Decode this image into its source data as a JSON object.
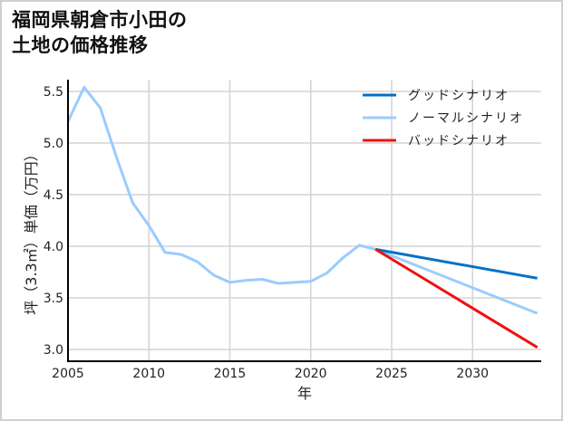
{
  "title": {
    "line1": "福岡県朝倉市小田の",
    "line2": "土地の価格推移"
  },
  "chart_data": {
    "type": "line",
    "title": "福岡県朝倉市小田の土地の価格推移",
    "xlabel": "年",
    "ylabel": "坪（3.3㎡）単価（万円）",
    "xlim": [
      2005,
      2034
    ],
    "ylim": [
      2.88,
      5.7
    ],
    "x_ticks": [
      "2005",
      "2010",
      "2015",
      "2020",
      "2025",
      "2030"
    ],
    "y_ticks": [
      "3.0",
      "3.5",
      "4.0",
      "4.5",
      "5.0",
      "5.5"
    ],
    "grid": true,
    "legend_position": "upper right",
    "series": [
      {
        "name": "ノーマルシナリオ",
        "color": "#99ccff",
        "x": [
          2005,
          2006,
          2007,
          2008,
          2009,
          2010,
          2011,
          2012,
          2013,
          2014,
          2015,
          2016,
          2017,
          2018,
          2019,
          2020,
          2021,
          2022,
          2023,
          2024,
          2034
        ],
        "values": [
          5.21,
          5.54,
          5.34,
          4.86,
          4.42,
          4.2,
          3.94,
          3.92,
          3.85,
          3.72,
          3.65,
          3.67,
          3.68,
          3.64,
          3.65,
          3.66,
          3.74,
          3.89,
          4.01,
          3.97,
          3.35
        ]
      },
      {
        "name": "グッドシナリオ",
        "color": "#0072c6",
        "x": [
          2024,
          2034
        ],
        "values": [
          3.97,
          3.69
        ]
      },
      {
        "name": "バッドシナリオ",
        "color": "#ee1111",
        "x": [
          2024,
          2034
        ],
        "values": [
          3.97,
          3.02
        ]
      }
    ]
  },
  "legend": {
    "items": [
      {
        "label": "グッドシナリオ",
        "color": "#0072c6"
      },
      {
        "label": "ノーマルシナリオ",
        "color": "#99ccff"
      },
      {
        "label": "バッドシナリオ",
        "color": "#ee1111"
      }
    ]
  },
  "axes": {
    "xlabel": "年",
    "ylabel": "坪（3.3㎡）単価（万円）",
    "x_ticks": [
      "2005",
      "2010",
      "2015",
      "2020",
      "2025",
      "2030"
    ],
    "y_ticks": [
      "3.0",
      "3.5",
      "4.0",
      "4.5",
      "5.0",
      "5.5"
    ]
  }
}
